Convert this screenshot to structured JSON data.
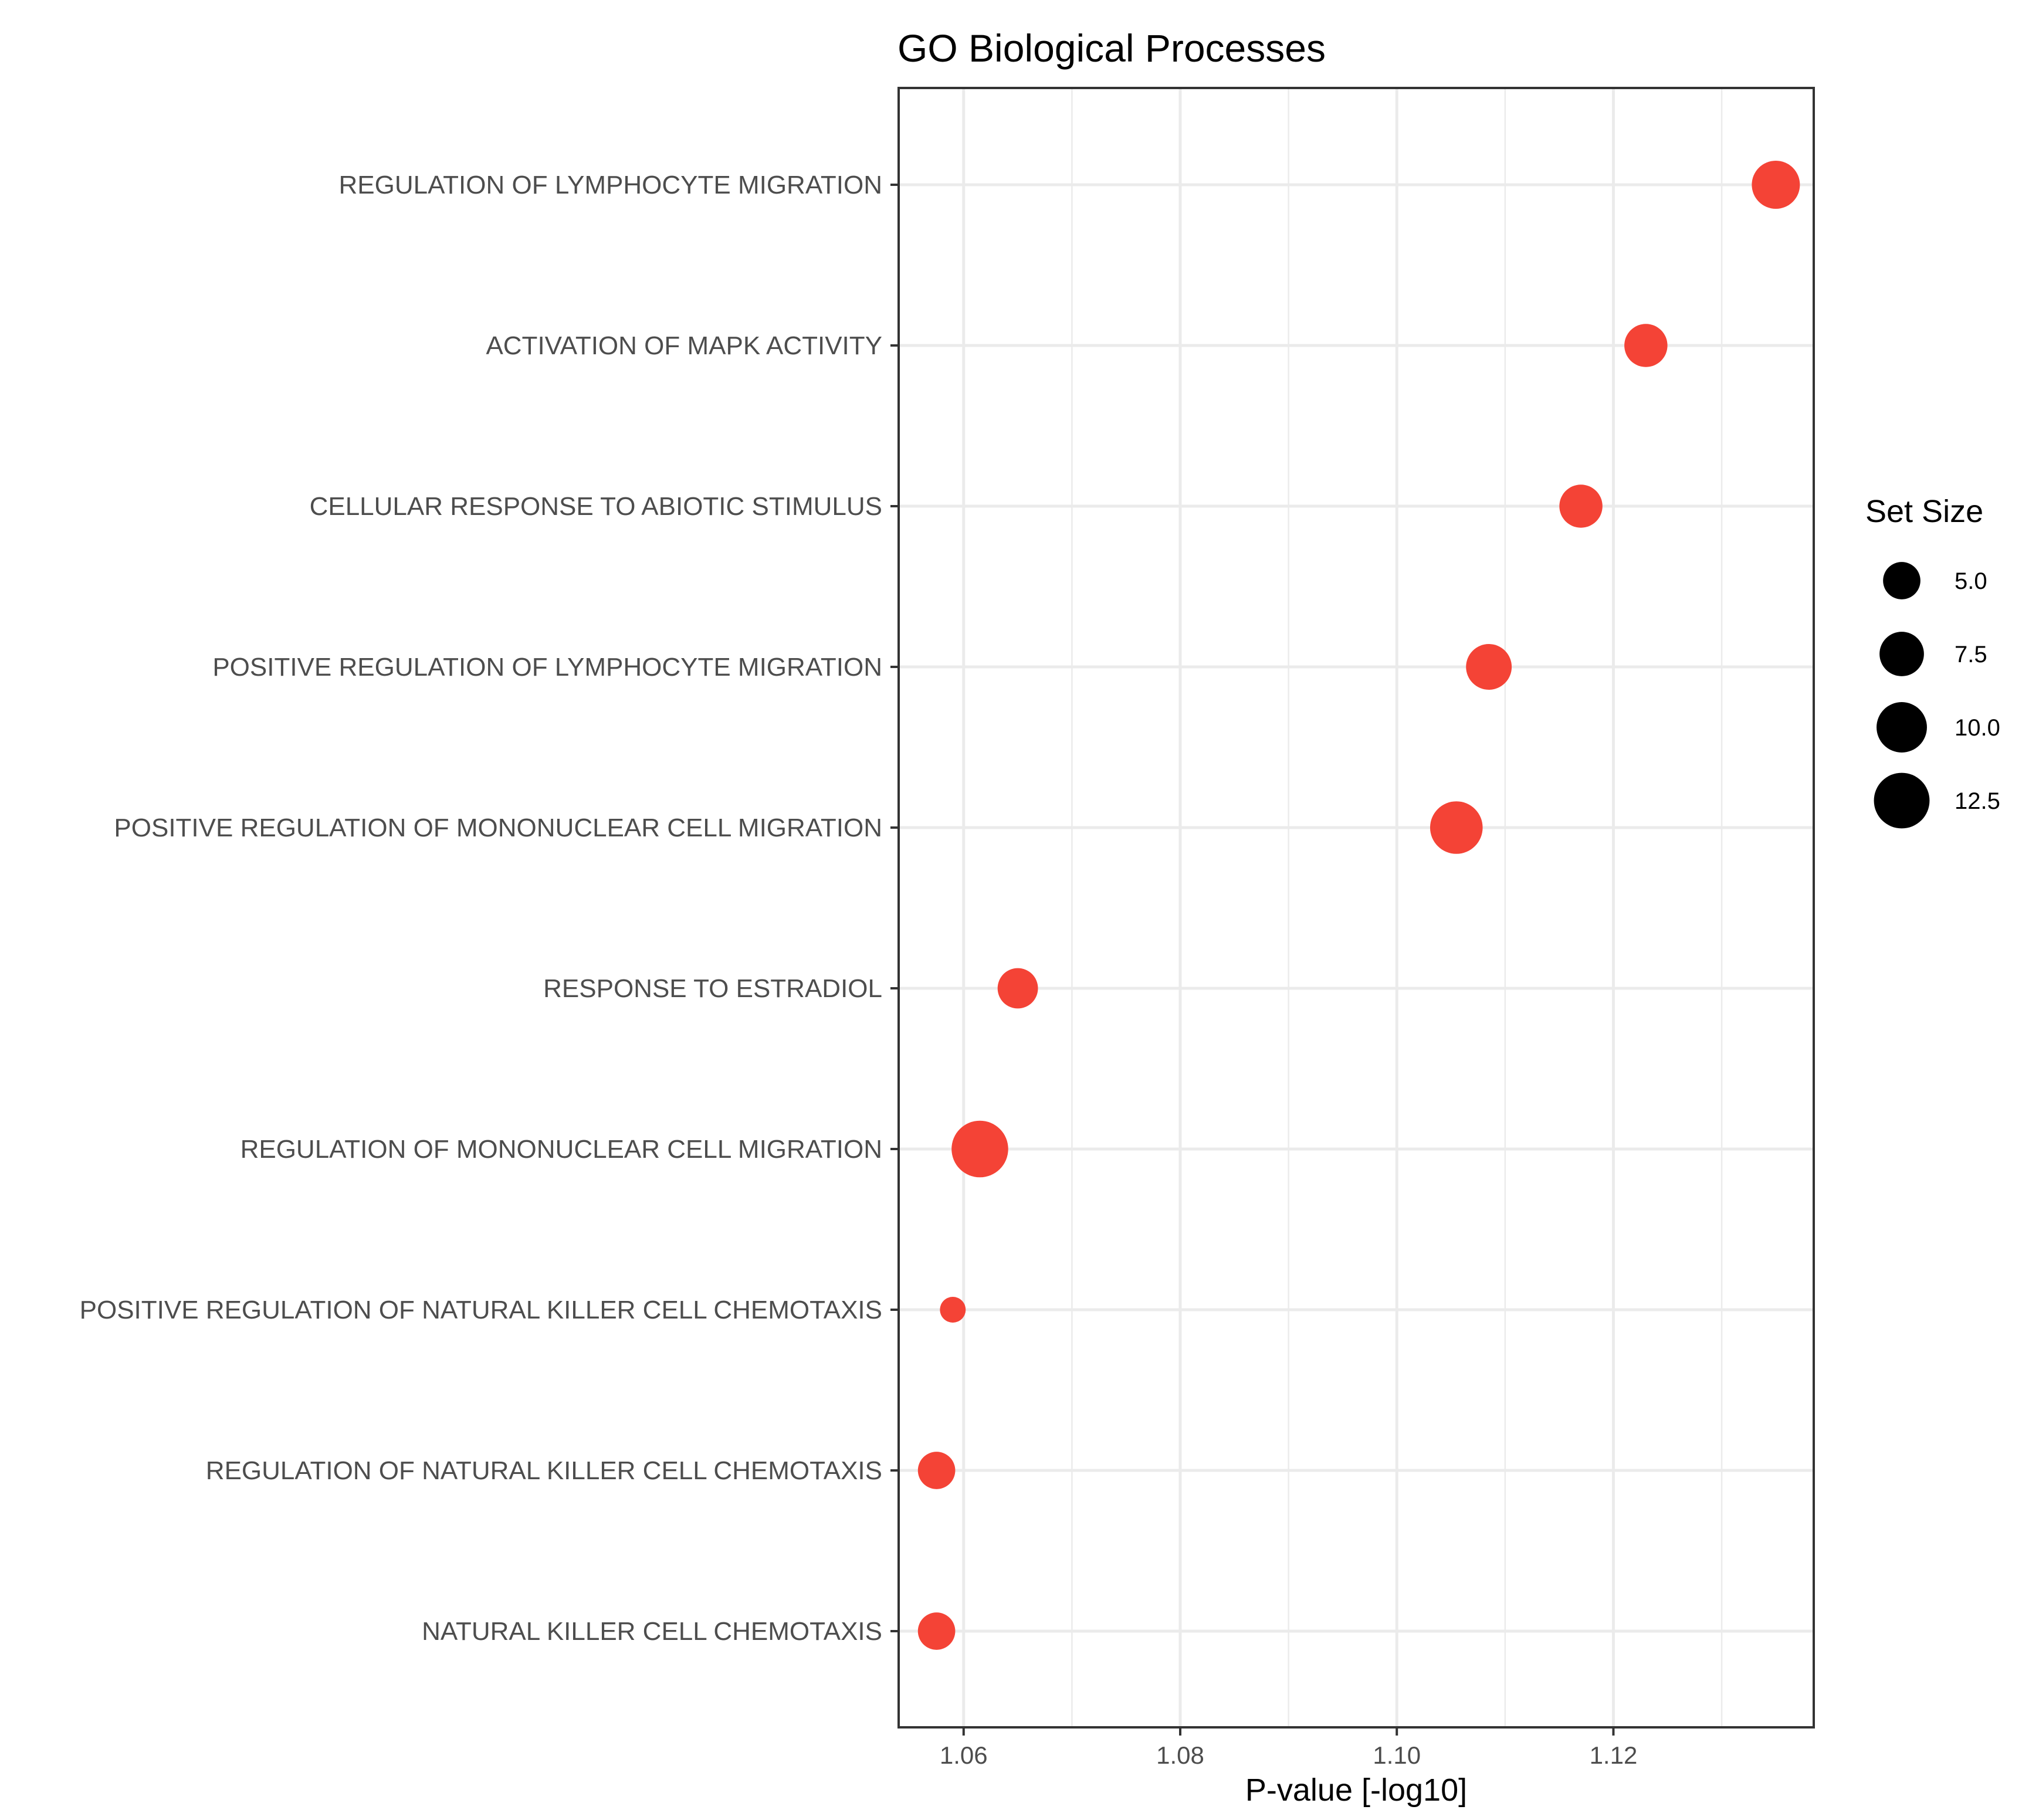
{
  "chart_data": {
    "type": "scatter",
    "title": "GO Biological Processes",
    "xlabel": "P-value [-log10]",
    "ylabel": "",
    "xlim": [
      1.054,
      1.1385
    ],
    "xticks": [
      1.06,
      1.08,
      1.1,
      1.12
    ],
    "xtick_labels": [
      "1.06",
      "1.08",
      "1.10",
      "1.12"
    ],
    "grid": true,
    "point_color": "#f44336",
    "categories": [
      "REGULATION OF LYMPHOCYTE MIGRATION",
      "ACTIVATION OF MAPK ACTIVITY",
      "CELLULAR RESPONSE TO ABIOTIC STIMULUS",
      "POSITIVE REGULATION OF LYMPHOCYTE MIGRATION",
      "POSITIVE REGULATION OF MONONUCLEAR CELL MIGRATION",
      "RESPONSE TO ESTRADIOL",
      "REGULATION OF MONONUCLEAR CELL MIGRATION",
      "POSITIVE REGULATION OF NATURAL KILLER CELL CHEMOTAXIS",
      "REGULATION OF NATURAL KILLER CELL CHEMOTAXIS",
      "NATURAL KILLER CELL CHEMOTAXIS"
    ],
    "values": [
      1.135,
      1.123,
      1.117,
      1.1085,
      1.1055,
      1.065,
      1.0615,
      1.059,
      1.0575,
      1.0575
    ],
    "set_sizes": [
      9,
      7,
      7,
      8,
      11,
      6,
      13,
      2,
      5,
      5
    ],
    "legend": {
      "title": "Set Size",
      "position": "right",
      "sizes": [
        5.0,
        7.5,
        10.0,
        12.5
      ],
      "labels": [
        "5.0",
        "7.5",
        "10.0",
        "12.5"
      ],
      "color": "#000000"
    }
  }
}
